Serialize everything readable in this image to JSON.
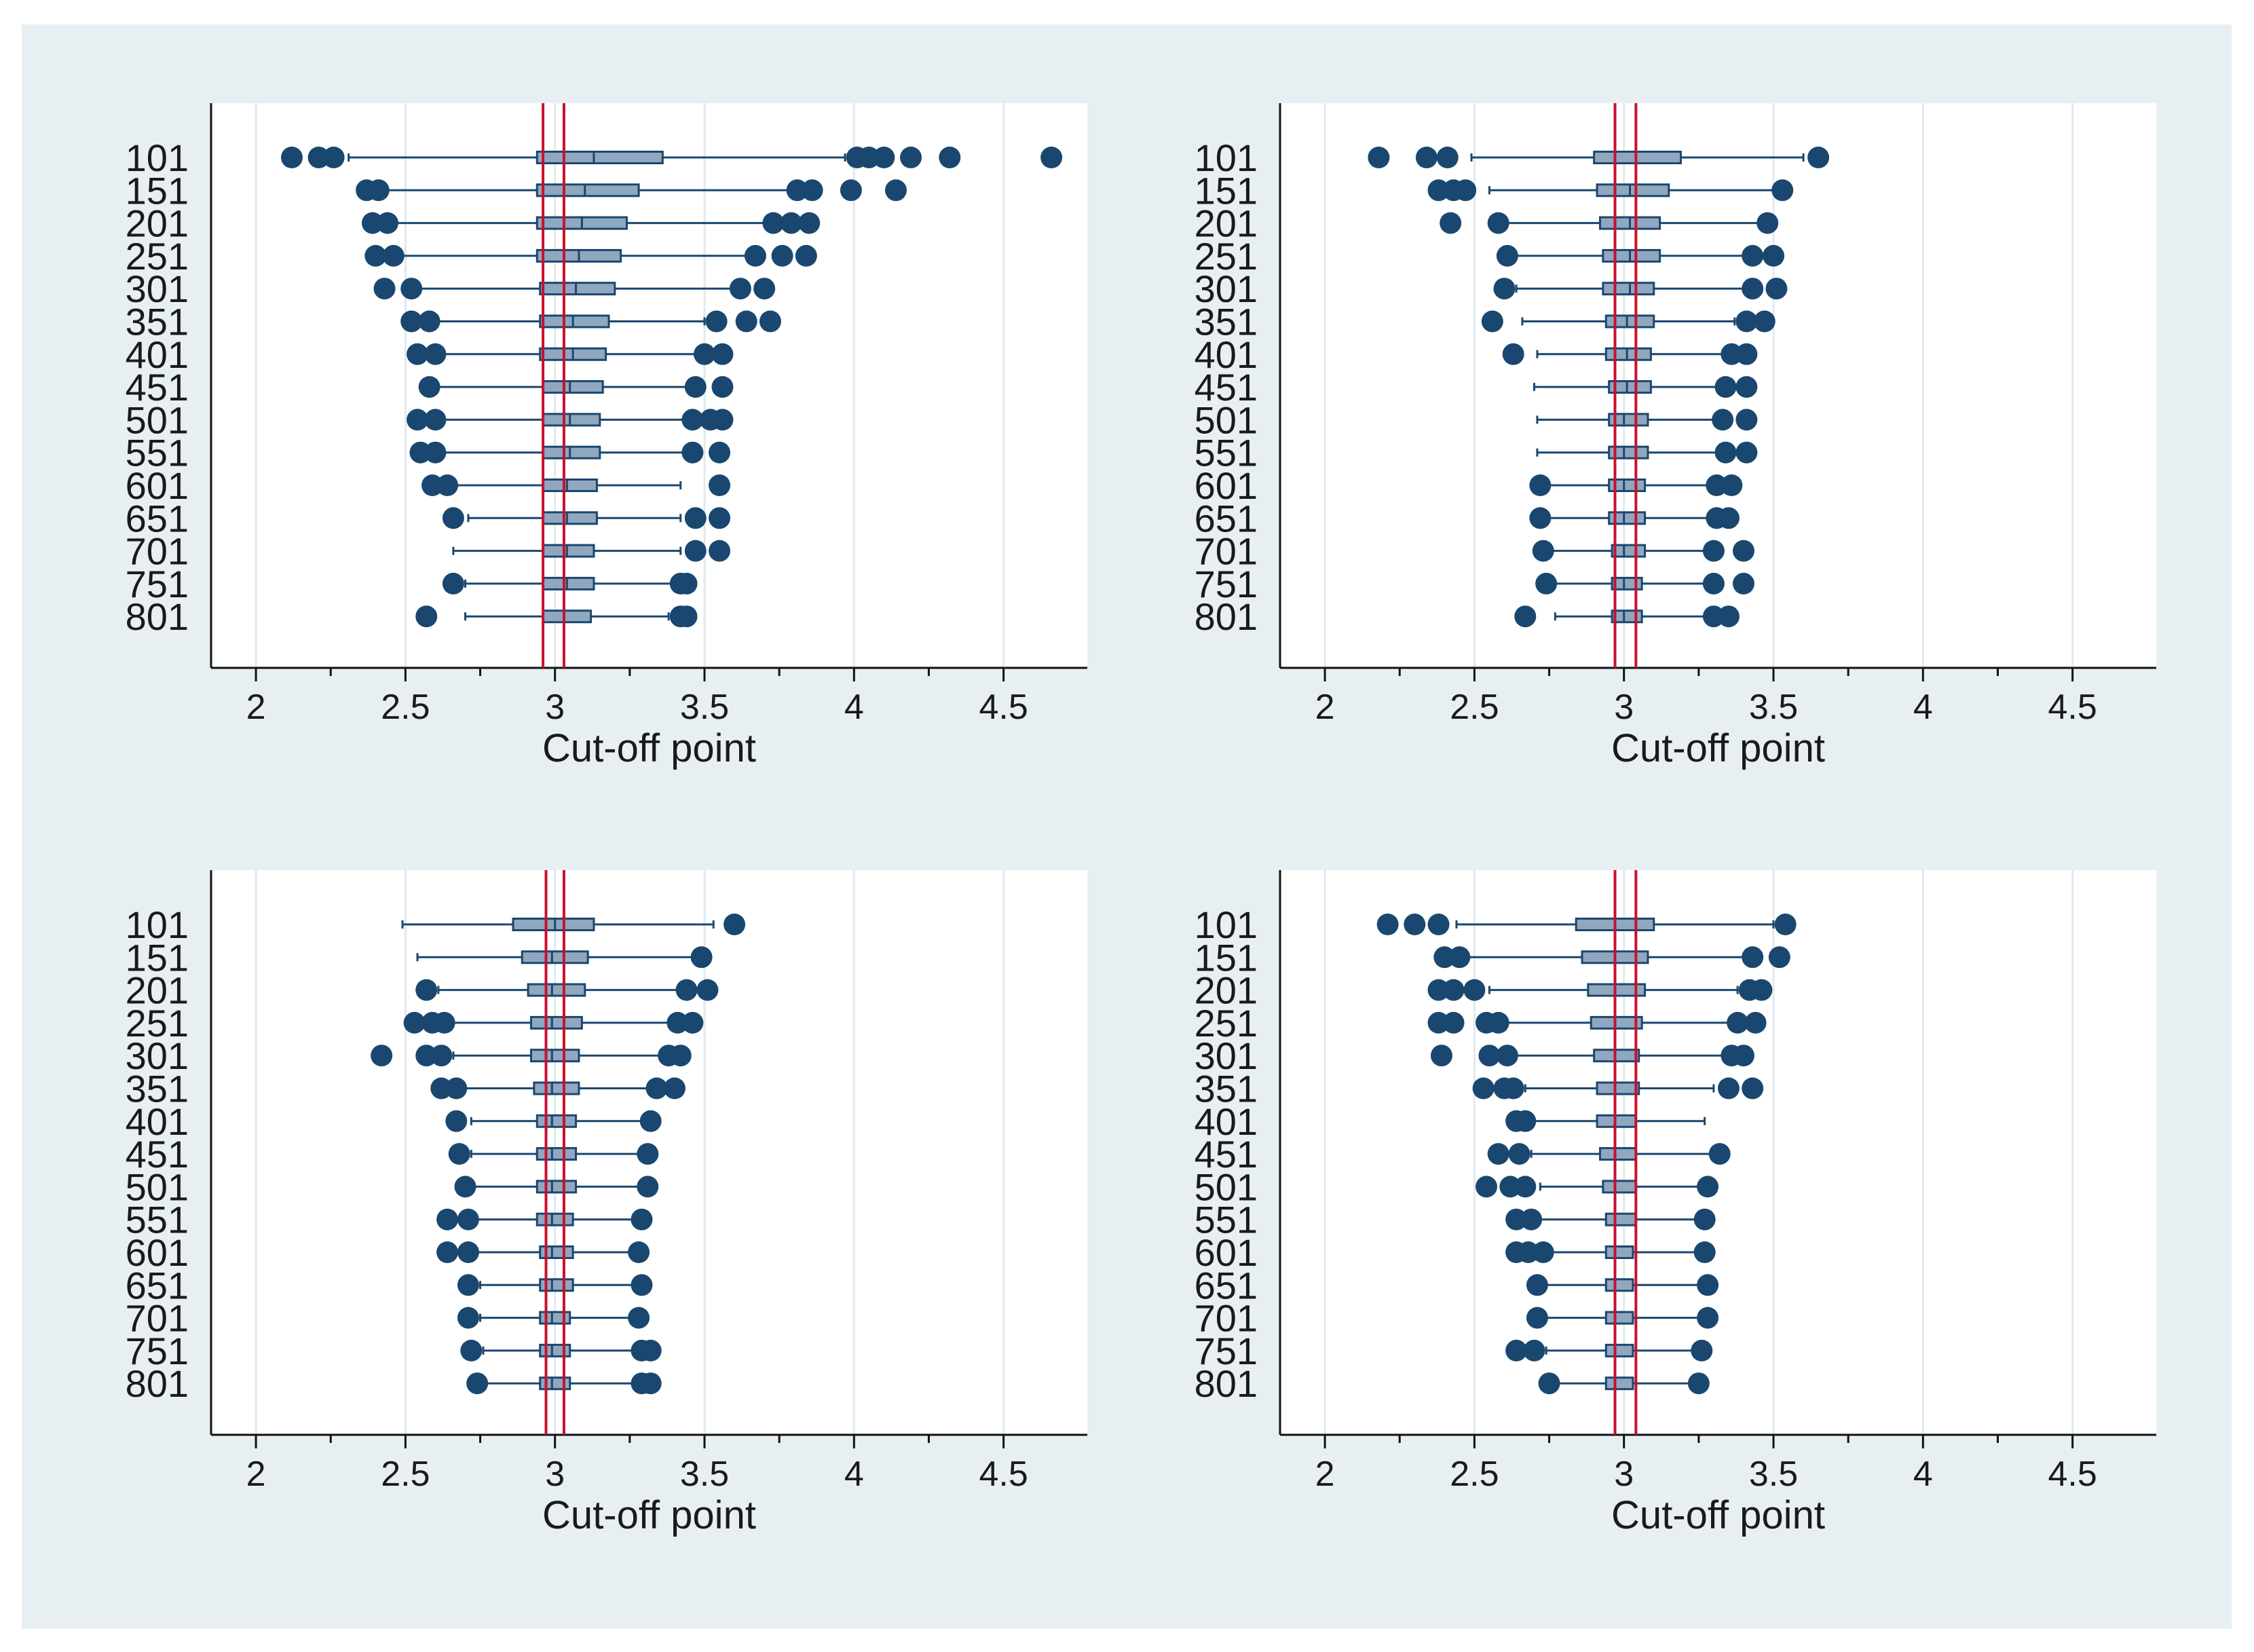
{
  "chart_data": [
    {
      "type": "boxplot",
      "panel": "top-left",
      "xlabel": "Cut-off point",
      "xlim": [
        1.85,
        4.78
      ],
      "xticks": [
        2,
        2.5,
        3,
        3.5,
        4,
        4.5
      ],
      "xtick_labels": [
        "2",
        "2.5",
        "3",
        "3.5",
        "4",
        "4.5"
      ],
      "reference_lines": [
        2.96,
        3.03
      ],
      "reference_color": "#c8102e",
      "box_color": "#90a8bf",
      "outlier_color": "#1a476f",
      "categories": [
        "101",
        "151",
        "201",
        "251",
        "301",
        "351",
        "401",
        "451",
        "501",
        "551",
        "601",
        "651",
        "701",
        "751",
        "801"
      ],
      "boxes": [
        {
          "wl": 2.31,
          "q1": 2.94,
          "med": 3.13,
          "q3": 3.36,
          "wh": 3.97,
          "out": [
            2.12,
            2.21,
            2.26,
            4.01,
            4.05,
            4.1,
            4.19,
            4.32,
            4.66
          ]
        },
        {
          "wl": 2.42,
          "q1": 2.94,
          "med": 3.1,
          "q3": 3.28,
          "wh": 3.78,
          "out": [
            2.37,
            2.41,
            3.81,
            3.86,
            3.99,
            4.14
          ]
        },
        {
          "wl": 2.45,
          "q1": 2.94,
          "med": 3.09,
          "q3": 3.24,
          "wh": 3.7,
          "out": [
            2.39,
            2.44,
            3.73,
            3.79,
            3.85
          ]
        },
        {
          "wl": 2.48,
          "q1": 2.94,
          "med": 3.08,
          "q3": 3.22,
          "wh": 3.64,
          "out": [
            2.4,
            2.46,
            3.67,
            3.76,
            3.84
          ]
        },
        {
          "wl": 2.5,
          "q1": 2.95,
          "med": 3.07,
          "q3": 3.2,
          "wh": 3.6,
          "out": [
            2.43,
            2.52,
            3.62,
            3.7
          ]
        },
        {
          "wl": 2.56,
          "q1": 2.95,
          "med": 3.06,
          "q3": 3.18,
          "wh": 3.5,
          "out": [
            2.52,
            2.58,
            3.54,
            3.64,
            3.72
          ]
        },
        {
          "wl": 2.58,
          "q1": 2.95,
          "med": 3.06,
          "q3": 3.17,
          "wh": 3.48,
          "out": [
            2.54,
            2.6,
            3.5,
            3.56
          ]
        },
        {
          "wl": 2.6,
          "q1": 2.96,
          "med": 3.05,
          "q3": 3.16,
          "wh": 3.45,
          "out": [
            2.58,
            3.47,
            3.56
          ]
        },
        {
          "wl": 2.61,
          "q1": 2.96,
          "med": 3.05,
          "q3": 3.15,
          "wh": 3.44,
          "out": [
            2.54,
            2.6,
            3.46,
            3.52,
            3.56
          ]
        },
        {
          "wl": 2.63,
          "q1": 2.96,
          "med": 3.05,
          "q3": 3.15,
          "wh": 3.43,
          "out": [
            2.55,
            2.6,
            3.46,
            3.55
          ]
        },
        {
          "wl": 2.66,
          "q1": 2.96,
          "med": 3.04,
          "q3": 3.14,
          "wh": 3.42,
          "out": [
            2.59,
            2.64,
            3.55
          ]
        },
        {
          "wl": 2.71,
          "q1": 2.96,
          "med": 3.04,
          "q3": 3.14,
          "wh": 3.42,
          "out": [
            2.66,
            3.47,
            3.55
          ]
        },
        {
          "wl": 2.66,
          "q1": 2.96,
          "med": 3.04,
          "q3": 3.13,
          "wh": 3.42,
          "out": [
            3.47,
            3.55
          ]
        },
        {
          "wl": 2.7,
          "q1": 2.96,
          "med": 3.04,
          "q3": 3.13,
          "wh": 3.39,
          "out": [
            2.66,
            3.42,
            3.44
          ]
        },
        {
          "wl": 2.7,
          "q1": 2.96,
          "med": 3.03,
          "q3": 3.12,
          "wh": 3.38,
          "out": [
            2.57,
            3.42,
            3.44
          ]
        }
      ]
    },
    {
      "type": "boxplot",
      "panel": "top-right",
      "xlabel": "Cut-off point",
      "xlim": [
        1.85,
        4.78
      ],
      "xticks": [
        2,
        2.5,
        3,
        3.5,
        4,
        4.5
      ],
      "xtick_labels": [
        "2",
        "2.5",
        "3",
        "3.5",
        "4",
        "4.5"
      ],
      "reference_lines": [
        2.97,
        3.04
      ],
      "reference_color": "#c8102e",
      "box_color": "#90a8bf",
      "outlier_color": "#1a476f",
      "categories": [
        "101",
        "151",
        "201",
        "251",
        "301",
        "351",
        "401",
        "451",
        "501",
        "551",
        "601",
        "651",
        "701",
        "751",
        "801"
      ],
      "boxes": [
        {
          "wl": 2.49,
          "q1": 2.9,
          "med": 3.04,
          "q3": 3.19,
          "wh": 3.6,
          "out": [
            2.18,
            2.34,
            2.41,
            3.65
          ]
        },
        {
          "wl": 2.55,
          "q1": 2.91,
          "med": 3.02,
          "q3": 3.15,
          "wh": 3.5,
          "out": [
            2.38,
            2.43,
            2.47,
            3.53
          ]
        },
        {
          "wl": 2.58,
          "q1": 2.92,
          "med": 3.02,
          "q3": 3.12,
          "wh": 3.45,
          "out": [
            2.42,
            2.58,
            3.48
          ]
        },
        {
          "wl": 2.62,
          "q1": 2.93,
          "med": 3.02,
          "q3": 3.12,
          "wh": 3.4,
          "out": [
            2.61,
            3.43,
            3.5
          ]
        },
        {
          "wl": 2.64,
          "q1": 2.93,
          "med": 3.02,
          "q3": 3.1,
          "wh": 3.4,
          "out": [
            2.6,
            3.43,
            3.51
          ]
        },
        {
          "wl": 2.66,
          "q1": 2.94,
          "med": 3.01,
          "q3": 3.1,
          "wh": 3.37,
          "out": [
            2.56,
            3.41,
            3.47
          ]
        },
        {
          "wl": 2.71,
          "q1": 2.94,
          "med": 3.01,
          "q3": 3.09,
          "wh": 3.33,
          "out": [
            2.63,
            3.36,
            3.41
          ]
        },
        {
          "wl": 2.7,
          "q1": 2.95,
          "med": 3.01,
          "q3": 3.09,
          "wh": 3.33,
          "out": [
            3.34,
            3.41
          ]
        },
        {
          "wl": 2.71,
          "q1": 2.95,
          "med": 3.0,
          "q3": 3.08,
          "wh": 3.3,
          "out": [
            3.33,
            3.41
          ]
        },
        {
          "wl": 2.71,
          "q1": 2.95,
          "med": 3.0,
          "q3": 3.08,
          "wh": 3.31,
          "out": [
            3.34,
            3.41
          ]
        },
        {
          "wl": 2.75,
          "q1": 2.95,
          "med": 3.0,
          "q3": 3.07,
          "wh": 3.28,
          "out": [
            2.72,
            3.31,
            3.36
          ]
        },
        {
          "wl": 2.75,
          "q1": 2.95,
          "med": 3.0,
          "q3": 3.07,
          "wh": 3.28,
          "out": [
            2.72,
            3.31,
            3.35
          ]
        },
        {
          "wl": 2.76,
          "q1": 2.96,
          "med": 3.0,
          "q3": 3.07,
          "wh": 3.27,
          "out": [
            2.73,
            3.3,
            3.4
          ]
        },
        {
          "wl": 2.76,
          "q1": 2.96,
          "med": 3.0,
          "q3": 3.06,
          "wh": 3.28,
          "out": [
            2.74,
            3.3,
            3.4
          ]
        },
        {
          "wl": 2.77,
          "q1": 2.96,
          "med": 3.0,
          "q3": 3.06,
          "wh": 3.27,
          "out": [
            2.67,
            3.3,
            3.35
          ]
        }
      ]
    },
    {
      "type": "boxplot",
      "panel": "bottom-left",
      "xlabel": "Cut-off point",
      "xlim": [
        1.85,
        4.78
      ],
      "xticks": [
        2,
        2.5,
        3,
        3.5,
        4,
        4.5
      ],
      "xtick_labels": [
        "2",
        "2.5",
        "3",
        "3.5",
        "4",
        "4.5"
      ],
      "reference_lines": [
        2.97,
        3.03
      ],
      "reference_color": "#c8102e",
      "box_color": "#90a8bf",
      "outlier_color": "#1a476f",
      "categories": [
        "101",
        "151",
        "201",
        "251",
        "301",
        "351",
        "401",
        "451",
        "501",
        "551",
        "601",
        "651",
        "701",
        "751",
        "801"
      ],
      "boxes": [
        {
          "wl": 2.49,
          "q1": 2.86,
          "med": 3.0,
          "q3": 3.13,
          "wh": 3.53,
          "out": [
            3.6
          ]
        },
        {
          "wl": 2.54,
          "q1": 2.89,
          "med": 2.99,
          "q3": 3.11,
          "wh": 3.46,
          "out": [
            3.49
          ]
        },
        {
          "wl": 2.61,
          "q1": 2.91,
          "med": 2.99,
          "q3": 3.1,
          "wh": 3.42,
          "out": [
            2.57,
            3.44,
            3.51
          ]
        },
        {
          "wl": 2.64,
          "q1": 2.92,
          "med": 2.99,
          "q3": 3.09,
          "wh": 3.38,
          "out": [
            2.53,
            2.59,
            2.63,
            3.41,
            3.46
          ]
        },
        {
          "wl": 2.66,
          "q1": 2.92,
          "med": 2.99,
          "q3": 3.08,
          "wh": 3.35,
          "out": [
            2.42,
            2.57,
            2.62,
            3.38,
            3.42
          ]
        },
        {
          "wl": 2.7,
          "q1": 2.93,
          "med": 2.99,
          "q3": 3.08,
          "wh": 3.32,
          "out": [
            2.62,
            2.67,
            3.34,
            3.4
          ]
        },
        {
          "wl": 2.72,
          "q1": 2.94,
          "med": 2.99,
          "q3": 3.07,
          "wh": 3.3,
          "out": [
            2.67,
            3.32
          ]
        },
        {
          "wl": 2.72,
          "q1": 2.94,
          "med": 2.99,
          "q3": 3.07,
          "wh": 3.29,
          "out": [
            2.68,
            3.31
          ]
        },
        {
          "wl": 2.73,
          "q1": 2.94,
          "med": 2.99,
          "q3": 3.07,
          "wh": 3.29,
          "out": [
            2.7,
            3.31
          ]
        },
        {
          "wl": 2.73,
          "q1": 2.94,
          "med": 2.99,
          "q3": 3.06,
          "wh": 3.27,
          "out": [
            2.64,
            2.71,
            3.29
          ]
        },
        {
          "wl": 2.74,
          "q1": 2.95,
          "med": 2.99,
          "q3": 3.06,
          "wh": 3.27,
          "out": [
            2.64,
            2.71,
            3.28
          ]
        },
        {
          "wl": 2.75,
          "q1": 2.95,
          "med": 2.99,
          "q3": 3.06,
          "wh": 3.26,
          "out": [
            2.71,
            3.29
          ]
        },
        {
          "wl": 2.75,
          "q1": 2.95,
          "med": 2.99,
          "q3": 3.05,
          "wh": 3.26,
          "out": [
            2.71,
            3.28
          ]
        },
        {
          "wl": 2.76,
          "q1": 2.95,
          "med": 2.99,
          "q3": 3.05,
          "wh": 3.26,
          "out": [
            2.72,
            3.29,
            3.32
          ]
        },
        {
          "wl": 2.77,
          "q1": 2.95,
          "med": 2.99,
          "q3": 3.05,
          "wh": 3.26,
          "out": [
            2.74,
            3.29,
            3.32
          ]
        }
      ]
    },
    {
      "type": "boxplot",
      "panel": "bottom-right",
      "xlabel": "Cut-off point",
      "xlim": [
        1.85,
        4.78
      ],
      "xticks": [
        2,
        2.5,
        3,
        3.5,
        4,
        4.5
      ],
      "xtick_labels": [
        "2",
        "2.5",
        "3",
        "3.5",
        "4",
        "4.5"
      ],
      "reference_lines": [
        2.97,
        3.04
      ],
      "reference_color": "#c8102e",
      "box_color": "#90a8bf",
      "outlier_color": "#1a476f",
      "categories": [
        "101",
        "151",
        "201",
        "251",
        "301",
        "351",
        "401",
        "451",
        "501",
        "551",
        "601",
        "651",
        "701",
        "751",
        "801"
      ],
      "boxes": [
        {
          "wl": 2.44,
          "q1": 2.84,
          "med": 2.97,
          "q3": 3.1,
          "wh": 3.5,
          "out": [
            2.21,
            2.3,
            2.38,
            3.54
          ]
        },
        {
          "wl": 2.48,
          "q1": 2.86,
          "med": 2.97,
          "q3": 3.08,
          "wh": 3.4,
          "out": [
            2.4,
            2.45,
            3.43,
            3.52
          ]
        },
        {
          "wl": 2.55,
          "q1": 2.88,
          "med": 2.97,
          "q3": 3.07,
          "wh": 3.38,
          "out": [
            2.38,
            2.43,
            2.5,
            3.42,
            3.46
          ]
        },
        {
          "wl": 2.61,
          "q1": 2.89,
          "med": 2.97,
          "q3": 3.06,
          "wh": 3.35,
          "out": [
            2.38,
            2.43,
            2.54,
            2.58,
            3.38,
            3.44
          ]
        },
        {
          "wl": 2.64,
          "q1": 2.9,
          "med": 2.97,
          "q3": 3.05,
          "wh": 3.35,
          "out": [
            2.39,
            2.55,
            2.61,
            3.36,
            3.4
          ]
        },
        {
          "wl": 2.67,
          "q1": 2.91,
          "med": 2.97,
          "q3": 3.05,
          "wh": 3.3,
          "out": [
            2.53,
            2.6,
            2.63,
            3.35,
            3.43
          ]
        },
        {
          "wl": 2.7,
          "q1": 2.91,
          "med": 2.97,
          "q3": 3.04,
          "wh": 3.27,
          "out": [
            2.64,
            2.67
          ]
        },
        {
          "wl": 2.69,
          "q1": 2.92,
          "med": 2.97,
          "q3": 3.04,
          "wh": 3.3,
          "out": [
            2.58,
            2.65,
            3.32
          ]
        },
        {
          "wl": 2.72,
          "q1": 2.93,
          "med": 2.97,
          "q3": 3.04,
          "wh": 3.27,
          "out": [
            2.54,
            2.62,
            2.67,
            3.28
          ]
        },
        {
          "wl": 2.72,
          "q1": 2.94,
          "med": 2.97,
          "q3": 3.04,
          "wh": 3.26,
          "out": [
            2.64,
            2.69,
            3.27
          ]
        },
        {
          "wl": 2.74,
          "q1": 2.94,
          "med": 2.97,
          "q3": 3.03,
          "wh": 3.25,
          "out": [
            2.64,
            2.68,
            2.73,
            3.27
          ]
        },
        {
          "wl": 2.73,
          "q1": 2.94,
          "med": 2.97,
          "q3": 3.03,
          "wh": 3.26,
          "out": [
            2.71,
            3.28
          ]
        },
        {
          "wl": 2.74,
          "q1": 2.94,
          "med": 2.97,
          "q3": 3.03,
          "wh": 3.26,
          "out": [
            2.71,
            3.28
          ]
        },
        {
          "wl": 2.74,
          "q1": 2.94,
          "med": 2.97,
          "q3": 3.03,
          "wh": 3.25,
          "out": [
            2.64,
            2.7,
            3.26
          ]
        },
        {
          "wl": 2.75,
          "q1": 2.94,
          "med": 2.97,
          "q3": 3.03,
          "wh": 3.23,
          "out": [
            2.75,
            3.25
          ]
        }
      ]
    }
  ]
}
